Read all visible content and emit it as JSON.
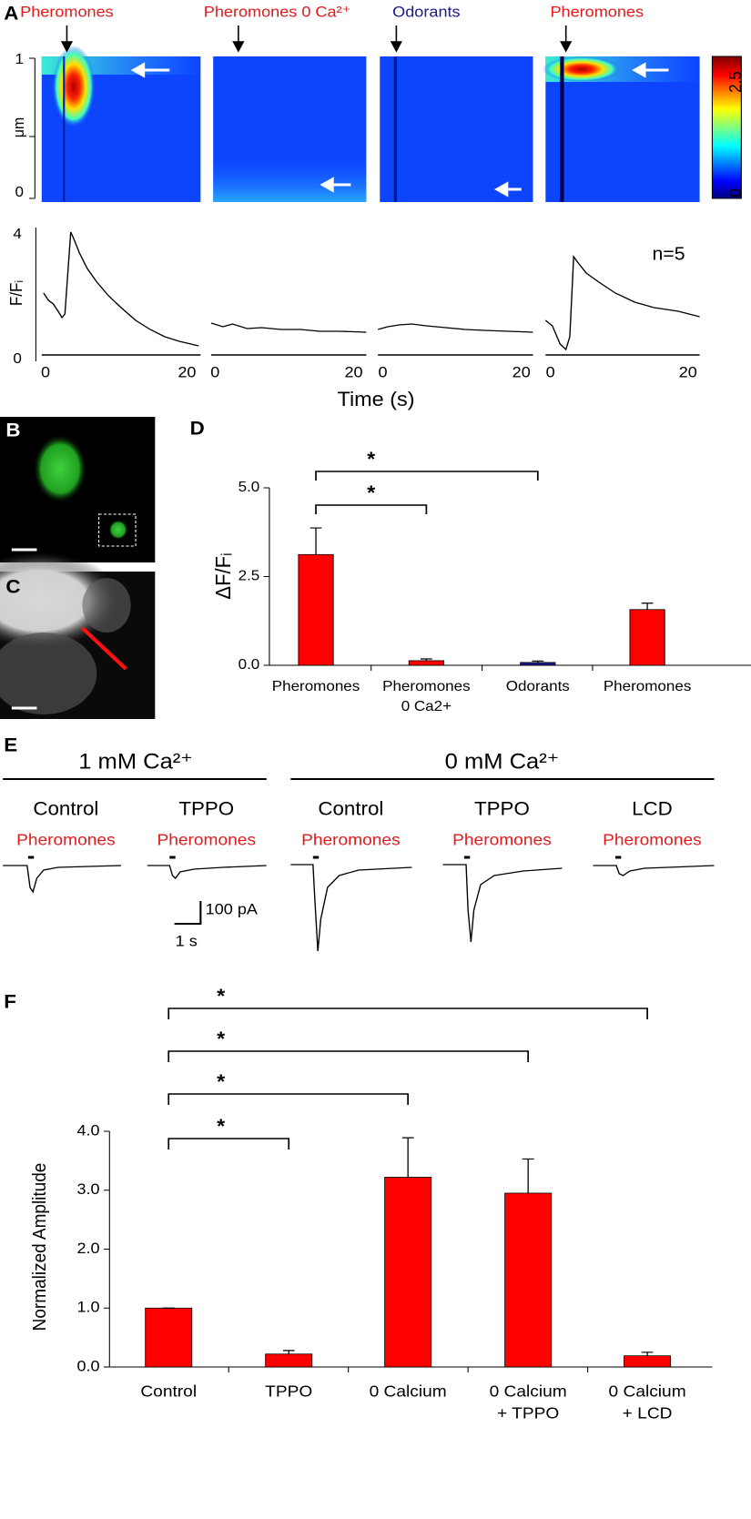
{
  "panel_labels": [
    "A",
    "B",
    "C",
    "D",
    "E",
    "F"
  ],
  "panel_a": {
    "stimuli": [
      {
        "label": "Pheromones",
        "color": "#e31a1c"
      },
      {
        "label": "Pheromones 0 Ca²⁺",
        "color": "#e31a1c"
      },
      {
        "label": "Odorants",
        "color": "#1a1a8c"
      },
      {
        "label": "Pheromones",
        "color": "#e31a1c"
      }
    ],
    "y_axis_label": "μm",
    "y_axis_top": "1",
    "y_axis_bottom": "0",
    "colorbar_labels": [
      "2.5",
      "0"
    ],
    "trace_y_label": "F/Fᵢ",
    "trace_yticks": [
      "4",
      "0"
    ],
    "trace_xticks": [
      "0",
      "20"
    ],
    "n_label": "n=5",
    "x_axis_label": "Time (s)"
  },
  "panel_e": {
    "groups": [
      "1 mM Ca²⁺",
      "0 mM Ca²⁺"
    ],
    "conditions": [
      "Control",
      "TPPO",
      "Control",
      "TPPO",
      "LCD"
    ],
    "stimulus": "Pheromones",
    "scale_current": "100 pA",
    "scale_time": "1 s"
  },
  "chart_data": [
    {
      "type": "bar",
      "y_label": "ΔF/Fᵢ",
      "categories": [
        "Pheromones",
        [
          "Pheromones",
          "0 Ca2+"
        ],
        "Odorants",
        "Pheromones"
      ],
      "values": [
        3.12,
        0.13,
        0.08,
        1.57
      ],
      "errors": [
        0.75,
        0.05,
        0.04,
        0.18
      ],
      "colors": [
        "#ff0000",
        "#ff0000",
        "#1a1a8c",
        "#ff0000"
      ],
      "ylim": [
        0,
        5
      ],
      "yticks": [
        {
          "value": 0,
          "label": "0.0"
        },
        {
          "value": 2.5,
          "label": "2.5"
        },
        {
          "value": 5,
          "label": "5.0"
        }
      ],
      "significance": [
        {
          "pair": [
            0,
            1
          ],
          "label": "*"
        },
        {
          "pair": [
            0,
            2
          ],
          "label": "*"
        }
      ]
    },
    {
      "type": "bar",
      "y_label": "Normalized Amplitude",
      "categories": [
        "Control",
        "TPPO",
        "0 Calcium",
        [
          "0 Calcium",
          "+ TPPO"
        ],
        [
          "0 Calcium",
          "+ LCD"
        ]
      ],
      "values": [
        1.0,
        0.22,
        3.22,
        2.95,
        0.19
      ],
      "errors": [
        0,
        0.06,
        0.67,
        0.58,
        0.06
      ],
      "colors": [
        "#ff0000",
        "#ff0000",
        "#ff0000",
        "#ff0000",
        "#ff0000"
      ],
      "ylim": [
        0,
        4
      ],
      "yticks": [
        {
          "value": 0,
          "label": "0.0"
        },
        {
          "value": 1,
          "label": "1.0"
        },
        {
          "value": 2,
          "label": "2.0"
        },
        {
          "value": 3,
          "label": "3.0"
        },
        {
          "value": 4,
          "label": "4.0"
        }
      ],
      "significance": [
        {
          "pair": [
            0,
            1
          ],
          "label": "*"
        },
        {
          "pair": [
            0,
            2
          ],
          "label": "*"
        },
        {
          "pair": [
            0,
            3
          ],
          "label": "*"
        },
        {
          "pair": [
            0,
            4
          ],
          "label": "*"
        }
      ]
    }
  ]
}
